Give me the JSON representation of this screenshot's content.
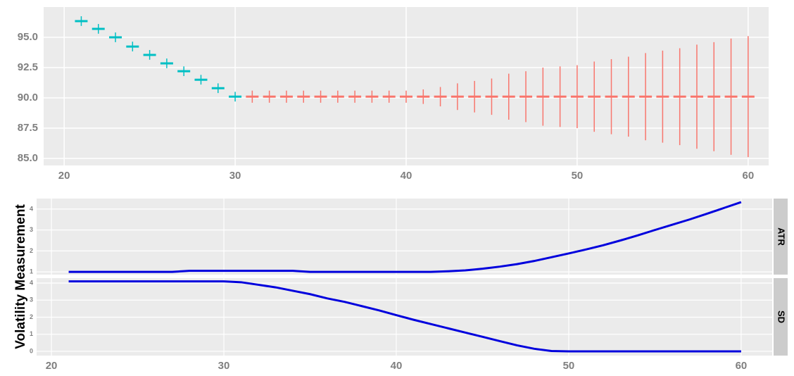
{
  "chart_data": [
    {
      "type": "errorbar",
      "xlim": [
        18.8,
        61.2
      ],
      "xticks": [
        20,
        30,
        40,
        50,
        60
      ],
      "ylim": [
        84.42,
        97.5
      ],
      "yticks": [
        {
          "value": 85,
          "label": "85.0"
        },
        {
          "value": 87.5,
          "label": "87.5"
        },
        {
          "value": 90,
          "label": "90.0"
        },
        {
          "value": 92.5,
          "label": "92.5"
        },
        {
          "value": 95,
          "label": "95.0"
        }
      ],
      "grid": true,
      "series": [
        {
          "color": "#00bfc4",
          "x": [
            21,
            22,
            23,
            24,
            25,
            26,
            27,
            28,
            29,
            30
          ],
          "values": [
            96.34,
            95.7,
            95.0,
            94.24,
            93.55,
            92.85,
            92.2,
            91.5,
            90.8,
            90.1
          ],
          "errors": [
            0.4,
            0.4,
            0.4,
            0.4,
            0.4,
            0.4,
            0.4,
            0.4,
            0.4,
            0.4
          ]
        },
        {
          "color": "#f8766d",
          "x": [
            31,
            32,
            33,
            34,
            35,
            36,
            37,
            38,
            39,
            40,
            41,
            42,
            43,
            44,
            45,
            46,
            47,
            48,
            49,
            50,
            51,
            52,
            53,
            54,
            55,
            56,
            57,
            58,
            59,
            60
          ],
          "values": [
            90.1,
            90.1,
            90.1,
            90.1,
            90.1,
            90.1,
            90.1,
            90.1,
            90.1,
            90.1,
            90.1,
            90.1,
            90.1,
            90.1,
            90.1,
            90.1,
            90.1,
            90.1,
            90.1,
            90.1,
            90.1,
            90.1,
            90.1,
            90.1,
            90.1,
            90.1,
            90.1,
            90.1,
            90.1,
            90.1
          ],
          "errors": [
            0.5,
            0.5,
            0.5,
            0.5,
            0.5,
            0.5,
            0.5,
            0.5,
            0.5,
            0.5,
            0.6,
            0.8,
            1.1,
            1.3,
            1.5,
            1.9,
            2.1,
            2.4,
            2.5,
            2.6,
            2.9,
            3.1,
            3.3,
            3.6,
            3.8,
            4.0,
            4.3,
            4.5,
            4.8,
            5.0
          ]
        }
      ]
    },
    {
      "type": "line",
      "y_label": "Volatility Measurement",
      "xlim": [
        19.14,
        61.8
      ],
      "xticks": [
        20,
        30,
        40,
        50,
        60
      ],
      "grid": true,
      "x": [
        21,
        22,
        23,
        24,
        25,
        26,
        27,
        28,
        29,
        30,
        31,
        32,
        33,
        34,
        35,
        36,
        37,
        38,
        39,
        40,
        41,
        42,
        43,
        44,
        45,
        46,
        47,
        48,
        49,
        50,
        51,
        52,
        53,
        54,
        55,
        56,
        57,
        58,
        59,
        60
      ],
      "series": [
        {
          "name": "ATR",
          "color": "#0000dd",
          "ylim": [
            0.87,
            4.5
          ],
          "yticks": [
            1,
            2,
            3,
            4
          ],
          "values": [
            1.0,
            1.0,
            1.0,
            1.0,
            1.0,
            1.0,
            1.0,
            1.05,
            1.05,
            1.05,
            1.05,
            1.05,
            1.05,
            1.05,
            1.0,
            1.0,
            1.0,
            1.0,
            1.0,
            1.0,
            1.0,
            1.0,
            1.03,
            1.07,
            1.15,
            1.25,
            1.37,
            1.52,
            1.7,
            1.88,
            2.07,
            2.27,
            2.5,
            2.74,
            3.0,
            3.25,
            3.5,
            3.77,
            4.05,
            4.33
          ]
        },
        {
          "name": "SD",
          "color": "#0000dd",
          "ylim": [
            -0.25,
            4.29
          ],
          "yticks": [
            0,
            1,
            2,
            3,
            4
          ],
          "values": [
            4.1,
            4.1,
            4.1,
            4.1,
            4.1,
            4.1,
            4.1,
            4.1,
            4.1,
            4.1,
            4.05,
            3.9,
            3.75,
            3.55,
            3.35,
            3.1,
            2.9,
            2.65,
            2.4,
            2.12,
            1.85,
            1.6,
            1.35,
            1.1,
            0.85,
            0.6,
            0.35,
            0.15,
            0.02,
            0,
            0,
            0,
            0,
            0,
            0,
            0,
            0,
            0,
            0,
            0
          ]
        }
      ]
    }
  ]
}
